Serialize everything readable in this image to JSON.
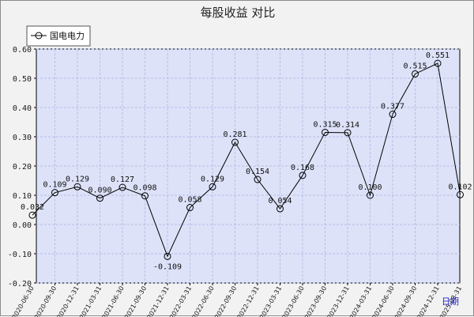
{
  "chart_data": {
    "type": "line",
    "title": "每股收益  对比",
    "xlabel": "日期",
    "ylabel": "",
    "ylim": [
      -0.2,
      0.6
    ],
    "yticks": [
      "0.60",
      "0.50",
      "0.40",
      "0.30",
      "0.20",
      "0.10",
      "0.00",
      "-0.10",
      "-0.20"
    ],
    "grid": true,
    "legend_position": "top-left",
    "categories": [
      "2020-06-30",
      "2020-09-30",
      "2020-12-31",
      "2021-03-31",
      "2021-06-30",
      "2021-09-30",
      "2021-12-31",
      "2022-03-31",
      "2022-06-30",
      "2022-09-30",
      "2022-12-31",
      "2023-03-31",
      "2023-06-30",
      "2023-09-30",
      "2023-12-31",
      "2024-03-31",
      "2024-06-30",
      "2024-09-30",
      "2024-12-31",
      "2025-03-31"
    ],
    "series": [
      {
        "name": "国电电力",
        "color": "#000000",
        "values": [
          0.032,
          0.109,
          0.129,
          0.09,
          0.127,
          0.098,
          -0.109,
          0.058,
          0.129,
          0.281,
          0.154,
          0.054,
          0.168,
          0.315,
          0.314,
          0.1,
          0.377,
          0.515,
          0.551,
          0.102
        ],
        "labels": [
          "0.032",
          "0.109",
          "0.129",
          "0.090",
          "0.127",
          "0.098",
          "-0.109",
          "0.058",
          "0.129",
          "0.281",
          "0.154",
          "0.054",
          "0.168",
          "0.315",
          "0.314",
          "0.100",
          "0.377",
          "0.515",
          "0.551",
          "0.102"
        ]
      }
    ],
    "colors": {
      "background": "#f2f2f2",
      "plot_background": "#dde2f8",
      "grid": "#b7bee6",
      "line": "#000000",
      "axis_note": "#2222cc"
    }
  }
}
